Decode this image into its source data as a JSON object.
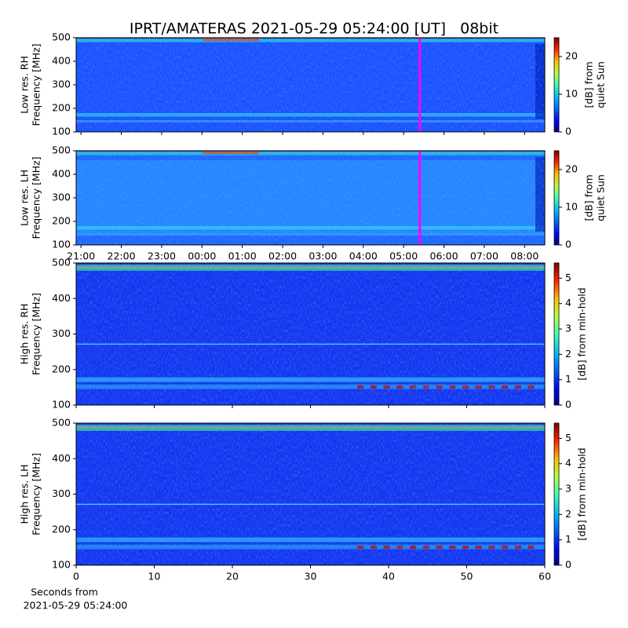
{
  "chart_data": [
    {
      "type": "heatmap",
      "title": "IPRT/AMATERAS 2021-05-29 05:24:00 [UT]   08bit",
      "ylabel": [
        "Low res. RH",
        "Frequency [MHz]"
      ],
      "ylim": [
        100,
        500
      ],
      "yticks": [
        100,
        200,
        300,
        400,
        500
      ],
      "xlim": [
        20.88,
        32.5
      ],
      "xticks": [
        21,
        22,
        23,
        24,
        25,
        26,
        27,
        28,
        29,
        30,
        31,
        32
      ],
      "xtick_labels": false,
      "marker": {
        "x": 29.4,
        "color": "#ff00ff"
      },
      "colorbar": {
        "label": [
          "[dB] from",
          "quiet Sun"
        ],
        "lim": [
          0,
          25
        ],
        "ticks": [
          0,
          10,
          20
        ]
      }
    },
    {
      "type": "heatmap",
      "ylabel": [
        "Low res. LH",
        "Frequency [MHz]"
      ],
      "ylim": [
        100,
        500
      ],
      "yticks": [
        100,
        200,
        300,
        400,
        500
      ],
      "xlim": [
        20.88,
        32.5
      ],
      "xticks": [
        {
          "value": 21,
          "label": "21:00"
        },
        {
          "value": 22,
          "label": "22:00"
        },
        {
          "value": 23,
          "label": "23:00"
        },
        {
          "value": 24,
          "label": "00:00"
        },
        {
          "value": 25,
          "label": "01:00"
        },
        {
          "value": 26,
          "label": "02:00"
        },
        {
          "value": 27,
          "label": "03:00"
        },
        {
          "value": 28,
          "label": "04:00"
        },
        {
          "value": 29,
          "label": "05:00"
        },
        {
          "value": 30,
          "label": "06:00"
        },
        {
          "value": 31,
          "label": "07:00"
        },
        {
          "value": 32,
          "label": "08:00"
        }
      ],
      "xtick_labels": true,
      "marker": {
        "x": 29.4,
        "color": "#ff00ff"
      },
      "colorbar": {
        "label": [
          "[dB] from",
          "quiet Sun"
        ],
        "lim": [
          0,
          25
        ],
        "ticks": [
          0,
          10,
          20
        ]
      }
    },
    {
      "type": "heatmap",
      "ylabel": [
        "High res. RH",
        "Frequency [MHz]"
      ],
      "ylim": [
        100,
        500
      ],
      "yticks": [
        100,
        200,
        300,
        400,
        500
      ],
      "xlim": [
        0,
        60
      ],
      "xticks": [
        0,
        10,
        20,
        30,
        40,
        50,
        60
      ],
      "xtick_labels": false,
      "colorbar": {
        "label": [
          "[dB] from min-hold"
        ],
        "lim": [
          0,
          5.6
        ],
        "ticks": [
          0,
          1,
          2,
          3,
          4,
          5
        ]
      }
    },
    {
      "type": "heatmap",
      "ylabel": [
        "High res. LH",
        "Frequency [MHz]"
      ],
      "ylim": [
        100,
        500
      ],
      "yticks": [
        100,
        200,
        300,
        400,
        500
      ],
      "xlim": [
        0,
        60
      ],
      "xticks": [
        0,
        10,
        20,
        30,
        40,
        50,
        60
      ],
      "xtick_labels": true,
      "xlabel": [
        "Seconds from",
        "2021-05-29 05:24:00"
      ],
      "colorbar": {
        "label": [
          "[dB] from min-hold"
        ],
        "lim": [
          0,
          5.6
        ],
        "ticks": [
          0,
          1,
          2,
          3,
          4,
          5
        ]
      }
    }
  ]
}
